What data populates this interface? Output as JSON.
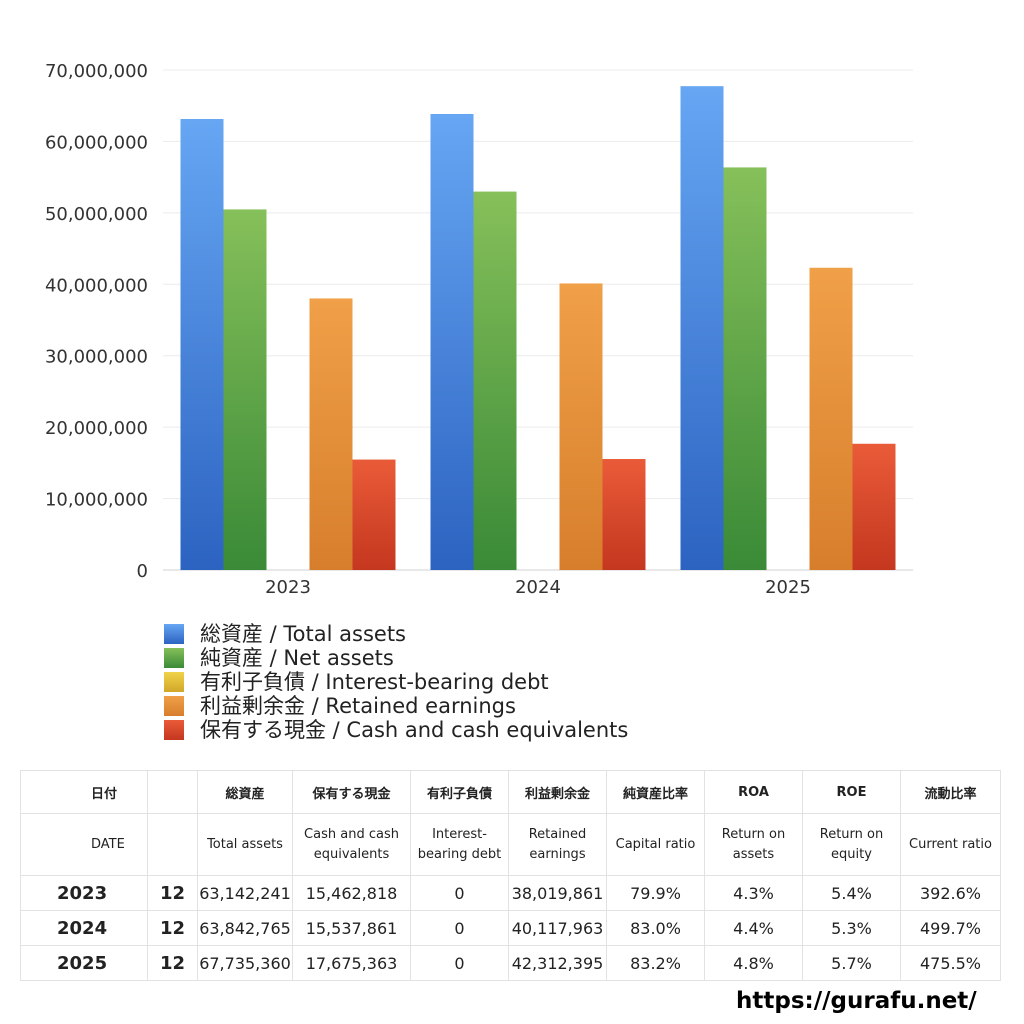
{
  "chart_data": {
    "type": "bar",
    "categories": [
      "2023",
      "2024",
      "2025"
    ],
    "ylim": [
      0,
      70000000
    ],
    "yticks": [
      "0",
      "10,000,000",
      "20,000,000",
      "30,000,000",
      "40,000,000",
      "50,000,000",
      "60,000,000",
      "70,000,000"
    ],
    "ytick_values": [
      0,
      10000000,
      20000000,
      30000000,
      40000000,
      50000000,
      60000000,
      70000000
    ],
    "grid": true,
    "legend_position": "bottom",
    "series": [
      {
        "name": "総資産 / Total assets",
        "color_top": "#66a6f3",
        "color_bottom": "#2c63c1",
        "values": [
          63142241,
          63842765,
          67735360
        ]
      },
      {
        "name": "純資産 / Net assets",
        "color_top": "#86c05a",
        "color_bottom": "#3a8a37",
        "values": [
          50480000,
          52980000,
          56360000
        ]
      },
      {
        "name": "有利子負債 / Interest-bearing debt",
        "color_top": "#f0d34a",
        "color_bottom": "#d1a72a",
        "values": [
          0,
          0,
          0
        ]
      },
      {
        "name": "利益剰余金 / Retained earnings",
        "color_top": "#f0a048",
        "color_bottom": "#d77e2c",
        "values": [
          38019861,
          40117963,
          42312395
        ]
      },
      {
        "name": "保有する現金 /  Cash and cash equivalents",
        "color_top": "#e95b38",
        "color_bottom": "#c5371f",
        "values": [
          15462818,
          15537861,
          17675363
        ]
      }
    ]
  },
  "table": {
    "header_jp": [
      "日付",
      "",
      "総資産",
      "保有する現金",
      "有利子負債",
      "利益剰余金",
      "純資産比率",
      "ROA",
      "ROE",
      "流動比率"
    ],
    "header_en": [
      "DATE",
      "",
      "Total assets",
      "Cash and cash equivalents",
      "Interest-bearing debt",
      "Retained earnings",
      "Capital ratio",
      "Return on assets",
      "Return on equity",
      "Current ratio"
    ],
    "rows": [
      [
        "2023",
        "12",
        "63,142,241",
        "15,462,818",
        "0",
        "38,019,861",
        "79.9%",
        "4.3%",
        "5.4%",
        "392.6%"
      ],
      [
        "2024",
        "12",
        "63,842,765",
        "15,537,861",
        "0",
        "40,117,963",
        "83.0%",
        "4.4%",
        "5.3%",
        "499.7%"
      ],
      [
        "2025",
        "12",
        "67,735,360",
        "17,675,363",
        "0",
        "42,312,395",
        "83.2%",
        "4.8%",
        "5.7%",
        "475.5%"
      ]
    ]
  },
  "site": "https://gurafu.net/"
}
